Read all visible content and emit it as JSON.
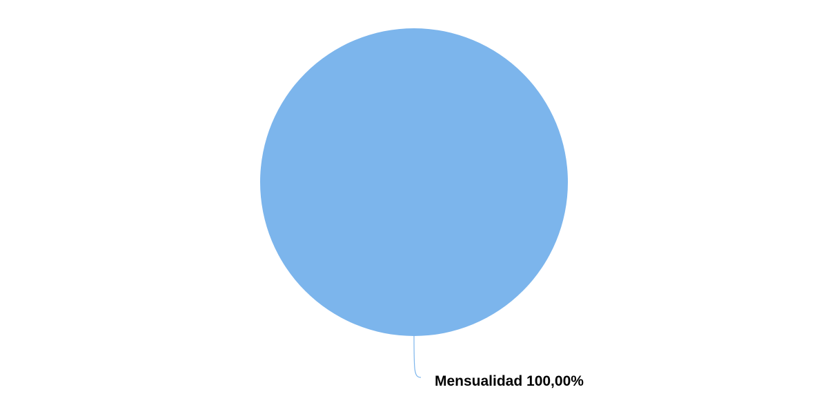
{
  "chart_data": {
    "type": "pie",
    "title": "",
    "slices": [
      {
        "label": "Mensualidad",
        "value": 100.0,
        "value_label": "100,00%",
        "display_label": "Mensualidad 100,00%",
        "color": "#7cb5ec"
      }
    ],
    "legend": "none",
    "data_labels": "outside-with-connector"
  }
}
